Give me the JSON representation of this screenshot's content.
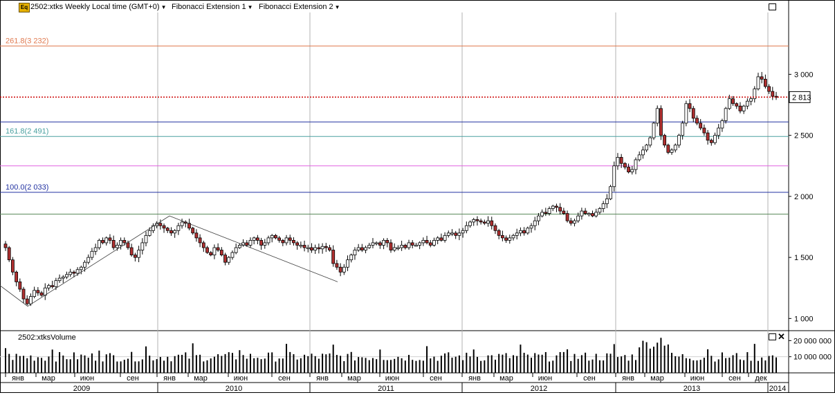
{
  "header": {
    "instrument": "2502:xtks Weekly Local time (GMT+0)",
    "study1": "Fibonacci Extension 1",
    "study2": "Fibonacci Extension 2",
    "eq_badge": "Eq"
  },
  "fib_levels": [
    {
      "label": "261.8(3 232)",
      "value": 3232,
      "color": "#e07a50"
    },
    {
      "label": "161.8(2 491)",
      "value": 2491,
      "color": "#4aa0a0"
    },
    {
      "label": "100.0(2 033)",
      "value": 2033,
      "color": "#2030a0"
    }
  ],
  "extra_levels": [
    {
      "value": 2610,
      "color": "#2030a0"
    },
    {
      "value": 2250,
      "color": "#e060e0"
    },
    {
      "value": 1855,
      "color": "#5a8a5a"
    }
  ],
  "current_price": {
    "label": "2 813",
    "value": 2813,
    "color": "#cc0000"
  },
  "volume_panel": {
    "title": "2502:xtksVolume",
    "y_labels": [
      "20 000 000",
      "10 000 000"
    ],
    "y_values": [
      20000000,
      10000000
    ]
  },
  "chart_data": {
    "type": "candlestick",
    "ylim": [
      900,
      3450
    ],
    "y_ticks": [
      1000,
      1500,
      2000,
      2500,
      3000
    ],
    "y_tick_labels": [
      "1 000",
      "1 500",
      "2 000",
      "2 500",
      "3 000"
    ],
    "month_labels": [
      "янв",
      "мар",
      "июн",
      "сен",
      "янв",
      "мар",
      "июн",
      "сен",
      "янв",
      "мар",
      "июн",
      "сен",
      "янв",
      "мар",
      "июн",
      "сен",
      "янв",
      "мар",
      "июн",
      "сен",
      "дек"
    ],
    "year_labels": [
      "2009",
      "2010",
      "2011",
      "2012",
      "2013",
      "2014"
    ],
    "weekly_close": [
      1580,
      1480,
      1380,
      1300,
      1240,
      1160,
      1120,
      1180,
      1230,
      1210,
      1190,
      1250,
      1270,
      1260,
      1310,
      1330,
      1340,
      1360,
      1380,
      1370,
      1400,
      1420,
      1460,
      1500,
      1550,
      1580,
      1640,
      1620,
      1660,
      1640,
      1580,
      1600,
      1640,
      1620,
      1580,
      1520,
      1500,
      1560,
      1620,
      1680,
      1720,
      1760,
      1780,
      1760,
      1740,
      1720,
      1700,
      1720,
      1760,
      1790,
      1780,
      1740,
      1700,
      1660,
      1620,
      1580,
      1540,
      1520,
      1580,
      1560,
      1520,
      1460,
      1500,
      1540,
      1580,
      1600,
      1620,
      1600,
      1640,
      1660,
      1640,
      1600,
      1620,
      1660,
      1680,
      1660,
      1640,
      1620,
      1660,
      1640,
      1620,
      1600,
      1600,
      1580,
      1580,
      1560,
      1580,
      1570,
      1590,
      1580,
      1560,
      1450,
      1420,
      1380,
      1420,
      1480,
      1520,
      1560,
      1580,
      1560,
      1580,
      1600,
      1620,
      1620,
      1600,
      1640,
      1620,
      1560,
      1580,
      1580,
      1600,
      1580,
      1620,
      1600,
      1600,
      1620,
      1640,
      1620,
      1600,
      1640,
      1660,
      1640,
      1680,
      1700,
      1700,
      1680,
      1700,
      1720,
      1760,
      1790,
      1810,
      1800,
      1790,
      1780,
      1800,
      1760,
      1720,
      1680,
      1660,
      1640,
      1660,
      1680,
      1700,
      1720,
      1700,
      1740,
      1760,
      1800,
      1840,
      1870,
      1860,
      1900,
      1920,
      1910,
      1880,
      1860,
      1800,
      1780,
      1800,
      1840,
      1880,
      1860,
      1860,
      1840,
      1870,
      1900,
      1940,
      1980,
      2080,
      2250,
      2320,
      2270,
      2240,
      2200,
      2220,
      2300,
      2340,
      2380,
      2420,
      2480,
      2600,
      2720,
      2500,
      2420,
      2360,
      2380,
      2420,
      2500,
      2600,
      2760,
      2720,
      2640,
      2600,
      2560,
      2520,
      2460,
      2440,
      2500,
      2560,
      2620,
      2720,
      2800,
      2760,
      2740,
      2700,
      2740,
      2780,
      2800,
      2880,
      2980,
      2960,
      2900,
      2860,
      2820,
      2813
    ]
  }
}
